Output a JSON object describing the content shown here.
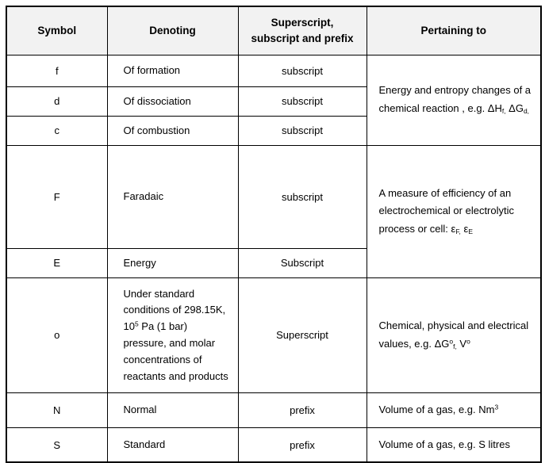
{
  "colors": {
    "header_bg": "#f2f2f2",
    "border": "#000000",
    "text": "#000000",
    "background": "#ffffff"
  },
  "table": {
    "headers": [
      "Symbol",
      "Denoting",
      "Superscript, subscript and prefix",
      "Pertaining to"
    ],
    "rows": [
      {
        "symbol": "f",
        "denoting": "Of formation",
        "script": "subscript"
      },
      {
        "symbol": "d",
        "denoting": "Of dissociation",
        "script": "subscript"
      },
      {
        "symbol": "c",
        "denoting": "Of combustion",
        "script": "subscript"
      },
      {
        "symbol": "F",
        "denoting": "Faradaic",
        "script": "subscript"
      },
      {
        "symbol": "E",
        "denoting": "Energy",
        "script": "Subscript"
      },
      {
        "symbol": "o",
        "script": "Superscript",
        "denoting_rich": [
          {
            "t": "Under standard conditions of 298.15K, 10"
          },
          {
            "sup": "5"
          },
          {
            "t": " Pa (1 bar) pressure, and molar concentrations of reactants and products"
          }
        ]
      },
      {
        "symbol": "N",
        "denoting": "Normal",
        "script": "prefix"
      },
      {
        "symbol": "S",
        "denoting": "Standard",
        "script": "prefix"
      }
    ],
    "pertaining": {
      "energy_entropy": [
        {
          "t": "Energy and entropy changes of a chemical reaction , e.g. ΔH"
        },
        {
          "sub": "f,"
        },
        {
          "t": "  ΔG"
        },
        {
          "sub": "d,"
        }
      ],
      "efficiency": [
        {
          "t": "A measure of efficiency of an electrochemical or electrolytic process or cell: ε"
        },
        {
          "sub": "F,"
        },
        {
          "t": " ε"
        },
        {
          "sub": "E"
        }
      ],
      "standard_values": [
        {
          "t": "Chemical, physical and electrical values, e.g. ΔG"
        },
        {
          "sup": "o"
        },
        {
          "sub": "f,"
        },
        {
          "t": " V"
        },
        {
          "sup": "o"
        }
      ],
      "volume_normal": [
        {
          "t": "Volume of a gas, e.g. Nm"
        },
        {
          "sup": "3"
        }
      ],
      "volume_standard": "Volume of a gas, e.g. S litres"
    }
  }
}
